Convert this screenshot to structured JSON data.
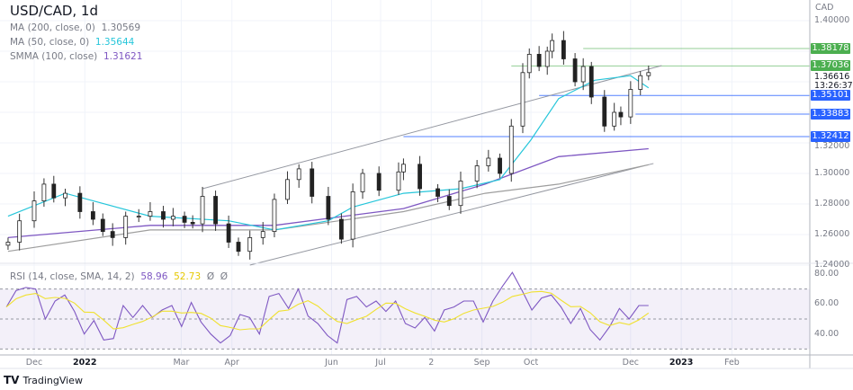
{
  "header": {
    "symbol_title": "USD/CAD, 1d",
    "indicators": [
      {
        "label": "MA (200, close, 0)",
        "value": "1.30569",
        "color": "#787b86"
      },
      {
        "label": "MA (50, close, 0)",
        "value": "1.35644",
        "color": "#26c6da"
      },
      {
        "label": "SMMA (100, close)",
        "value": "1.31621",
        "color": "#7e57c2"
      }
    ],
    "rsi_legend": {
      "label": "RSI (14, close, SMA, 14, 2)",
      "value1": "58.96",
      "value2": "52.73",
      "extra1": "Ø",
      "extra2": "Ø",
      "color1": "#7e57c2",
      "color2": "#f0e130"
    }
  },
  "price_axis": {
    "currency": "CAD",
    "ticks": [
      "1.40000",
      "1.32000",
      "1.30000",
      "1.28000",
      "1.26000",
      "1.24000"
    ],
    "tick_values": [
      1.4,
      1.32,
      1.3,
      1.28,
      1.26,
      1.24
    ],
    "current_price": "1.36616",
    "countdown": "13:26:37"
  },
  "levels": [
    {
      "label": "1.38178",
      "value": 1.38178,
      "color": "#4caf50",
      "from": "2022-11-02"
    },
    {
      "label": "1.37036",
      "value": 1.37036,
      "color": "#4caf50",
      "from": "2022-09-19"
    },
    {
      "label": "1.35101",
      "value": 1.35101,
      "color": "#2962ff",
      "from": "2022-10-06"
    },
    {
      "label": "1.33883",
      "value": 1.33883,
      "color": "#2962ff",
      "from": "2022-12-04"
    },
    {
      "label": "1.32412",
      "value": 1.32412,
      "color": "#2962ff",
      "from": "2022-07-15"
    }
  ],
  "rsi_axis": {
    "ticks": [
      "80.00",
      "60.00",
      "40.00"
    ],
    "tick_values": [
      80,
      60,
      40
    ],
    "bands": [
      70,
      50,
      30
    ]
  },
  "time_axis": [
    {
      "label": "Dec",
      "date": "2021-12-01"
    },
    {
      "label": "2022",
      "date": "2022-01-01"
    },
    {
      "label": "Mar",
      "date": "2022-03-01"
    },
    {
      "label": "Apr",
      "date": "2022-04-01"
    },
    {
      "label": "Jun",
      "date": "2022-06-01"
    },
    {
      "label": "Jul",
      "date": "2022-07-01"
    },
    {
      "label": "2",
      "date": "2022-08-01"
    },
    {
      "label": "Sep",
      "date": "2022-09-01"
    },
    {
      "label": "Oct",
      "date": "2022-10-01"
    },
    {
      "label": "Dec",
      "date": "2022-12-01"
    },
    {
      "label": "2023",
      "date": "2023-01-01"
    },
    {
      "label": "Feb",
      "date": "2023-02-01"
    }
  ],
  "footer": {
    "brand": "TradingView"
  },
  "chart_data": {
    "type": "candlestick",
    "symbol": "USD/CAD",
    "interval": "1d",
    "ylim": [
      1.235,
      1.405
    ],
    "price": [
      [
        "2021-11-15",
        1.255
      ],
      [
        "2021-11-22",
        1.269
      ],
      [
        "2021-12-01",
        1.282
      ],
      [
        "2021-12-07",
        1.293
      ],
      [
        "2021-12-13",
        1.284
      ],
      [
        "2021-12-20",
        1.287
      ],
      [
        "2021-12-29",
        1.275
      ],
      [
        "2022-01-06",
        1.27
      ],
      [
        "2022-01-12",
        1.262
      ],
      [
        "2022-01-18",
        1.258
      ],
      [
        "2022-01-26",
        1.272
      ],
      [
        "2022-02-03",
        1.272
      ],
      [
        "2022-02-10",
        1.275
      ],
      [
        "2022-02-18",
        1.27
      ],
      [
        "2022-02-24",
        1.272
      ],
      [
        "2022-03-03",
        1.268
      ],
      [
        "2022-03-08",
        1.267
      ],
      [
        "2022-03-14",
        1.285
      ],
      [
        "2022-03-22",
        1.267
      ],
      [
        "2022-03-30",
        1.255
      ],
      [
        "2022-04-05",
        1.249
      ],
      [
        "2022-04-12",
        1.258
      ],
      [
        "2022-04-20",
        1.262
      ],
      [
        "2022-04-27",
        1.283
      ],
      [
        "2022-05-05",
        1.296
      ],
      [
        "2022-05-12",
        1.303
      ],
      [
        "2022-05-20",
        1.285
      ],
      [
        "2022-05-30",
        1.27
      ],
      [
        "2022-06-07",
        1.257
      ],
      [
        "2022-06-14",
        1.288
      ],
      [
        "2022-06-20",
        1.3
      ],
      [
        "2022-06-30",
        1.289
      ],
      [
        "2022-07-12",
        1.301
      ],
      [
        "2022-07-15",
        1.306
      ],
      [
        "2022-07-25",
        1.29
      ],
      [
        "2022-08-05",
        1.285
      ],
      [
        "2022-08-12",
        1.279
      ],
      [
        "2022-08-19",
        1.295
      ],
      [
        "2022-08-29",
        1.305
      ],
      [
        "2022-09-05",
        1.31
      ],
      [
        "2022-09-12",
        1.3
      ],
      [
        "2022-09-19",
        1.331
      ],
      [
        "2022-09-26",
        1.366
      ],
      [
        "2022-09-30",
        1.378
      ],
      [
        "2022-10-06",
        1.37
      ],
      [
        "2022-10-11",
        1.38
      ],
      [
        "2022-10-14",
        1.387
      ],
      [
        "2022-10-21",
        1.375
      ],
      [
        "2022-10-28",
        1.36
      ],
      [
        "2022-11-02",
        1.37
      ],
      [
        "2022-11-07",
        1.35
      ],
      [
        "2022-11-15",
        1.331
      ],
      [
        "2022-11-21",
        1.34
      ],
      [
        "2022-11-25",
        1.337
      ],
      [
        "2022-12-01",
        1.355
      ],
      [
        "2022-12-07",
        1.364
      ],
      [
        "2022-12-12",
        1.366
      ]
    ],
    "ma50": [
      [
        "2021-11-15",
        1.272
      ],
      [
        "2021-12-20",
        1.287
      ],
      [
        "2022-02-10",
        1.272
      ],
      [
        "2022-03-30",
        1.269
      ],
      [
        "2022-04-27",
        1.263
      ],
      [
        "2022-05-30",
        1.269
      ],
      [
        "2022-06-14",
        1.278
      ],
      [
        "2022-07-15",
        1.287
      ],
      [
        "2022-08-19",
        1.29
      ],
      [
        "2022-09-12",
        1.296
      ],
      [
        "2022-10-01",
        1.322
      ],
      [
        "2022-10-18",
        1.349
      ],
      [
        "2022-11-09",
        1.361
      ],
      [
        "2022-12-01",
        1.364
      ],
      [
        "2022-12-12",
        1.356
      ]
    ],
    "ma200": [
      [
        "2021-11-15",
        1.249
      ],
      [
        "2022-02-10",
        1.263
      ],
      [
        "2022-04-27",
        1.263
      ],
      [
        "2022-07-15",
        1.275
      ],
      [
        "2022-09-03",
        1.287
      ],
      [
        "2022-10-18",
        1.293
      ],
      [
        "2022-12-12",
        1.3057
      ]
    ],
    "smma100": [
      [
        "2021-11-15",
        1.258
      ],
      [
        "2022-02-10",
        1.266
      ],
      [
        "2022-04-27",
        1.266
      ],
      [
        "2022-07-15",
        1.277
      ],
      [
        "2022-09-03",
        1.293
      ],
      [
        "2022-10-18",
        1.311
      ],
      [
        "2022-12-12",
        1.3162
      ]
    ],
    "trendlines": [
      {
        "from": [
          "2022-03-14",
          1.29
        ],
        "to": [
          "2022-12-20",
          1.3706
        ]
      },
      {
        "from": [
          "2022-04-12",
          1.24
        ],
        "to": [
          "2022-12-15",
          1.3065
        ]
      }
    ],
    "rsi": {
      "start": "2021-11-14",
      "end": "2022-12-12",
      "ylim": [
        25,
        85
      ],
      "values": [
        58,
        69,
        71,
        70,
        50,
        62,
        66,
        55,
        40,
        49,
        36,
        37,
        59,
        51,
        59,
        51,
        56,
        59,
        45,
        61,
        48,
        40,
        34,
        39,
        53,
        51,
        40,
        65,
        67,
        57,
        70,
        52,
        47,
        39,
        34,
        63,
        65,
        58,
        62,
        55,
        62,
        47,
        44,
        51,
        42,
        56,
        58,
        62,
        62,
        48,
        62,
        72,
        81,
        69,
        56,
        64,
        66,
        58,
        47,
        57,
        43,
        36,
        45,
        57,
        50,
        59,
        59
      ]
    }
  }
}
